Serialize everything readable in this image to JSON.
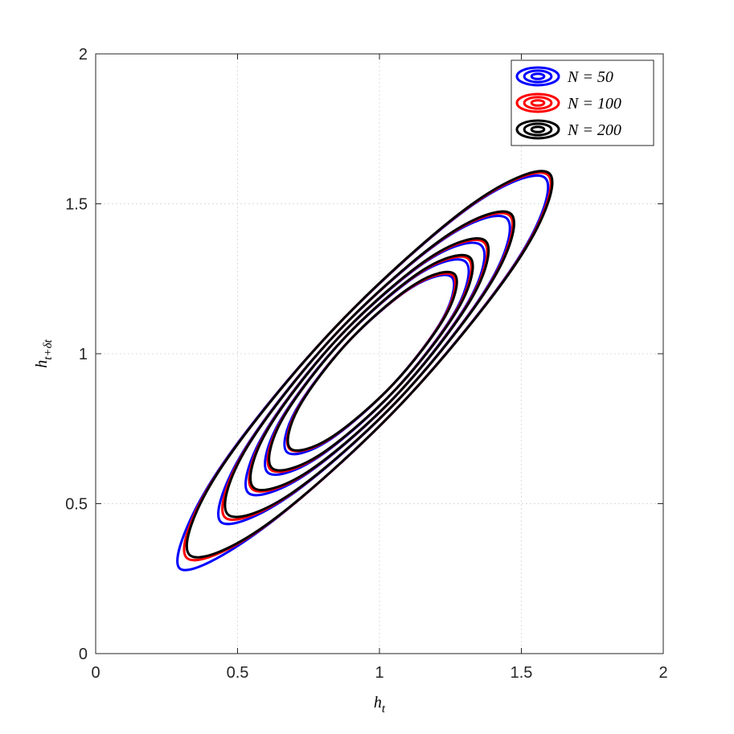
{
  "chart_data": {
    "type": "contour",
    "xlabel": {
      "text": "h",
      "subscript": "t"
    },
    "ylabel": {
      "text": "h",
      "subscript": "t+δt"
    },
    "xlim": [
      0,
      2
    ],
    "ylim": [
      0,
      2
    ],
    "xticks": [
      0,
      0.5,
      1,
      1.5,
      2
    ],
    "yticks": [
      0,
      0.5,
      1,
      1.5,
      2
    ],
    "grid": true,
    "legend": "upper right",
    "series": [
      {
        "name": "N = 50",
        "color": "#0000ff",
        "contours": [
          {
            "x": [
              1.255,
              1.115,
              0.888,
              0.705,
              0.673,
              0.811,
              1.038,
              1.222
            ],
            "y": [
              1.255,
              1.222,
              1.038,
              0.811,
              0.673,
              0.705,
              0.888,
              1.115
            ]
          },
          {
            "x": [
              1.305,
              1.143,
              0.87,
              0.648,
              0.605,
              0.773,
              1.046,
              1.268
            ],
            "y": [
              1.305,
              1.268,
              1.046,
              0.773,
              0.605,
              0.648,
              0.87,
              1.143
            ]
          },
          {
            "x": [
              1.36,
              1.173,
              0.854,
              0.593,
              0.537,
              0.733,
              1.052,
              1.313
            ],
            "y": [
              1.36,
              1.313,
              1.052,
              0.733,
              0.537,
              0.593,
              0.854,
              1.173
            ]
          },
          {
            "x": [
              1.45,
              1.229,
              0.843,
              0.522,
              0.44,
              0.677,
              1.063,
              1.384
            ],
            "y": [
              1.45,
              1.384,
              1.063,
              0.677,
              0.44,
              0.522,
              0.843,
              1.229
            ]
          },
          {
            "x": [
              1.585,
              1.316,
              0.831,
              0.418,
              0.295,
              0.59,
              1.075,
              1.488
            ],
            "y": [
              1.585,
              1.488,
              1.075,
              0.59,
              0.285,
              0.418,
              0.831,
              1.316
            ]
          }
        ]
      },
      {
        "name": "N = 100",
        "color": "#ff0000",
        "contours": [
          {
            "x": [
              1.26,
              1.122,
              0.896,
              0.713,
              0.683,
              0.819,
              1.046,
              1.228
            ],
            "y": [
              1.26,
              1.228,
              1.046,
              0.819,
              0.683,
              0.713,
              0.896,
              1.122
            ]
          },
          {
            "x": [
              1.315,
              1.15,
              0.878,
              0.656,
              0.615,
              0.781,
              1.054,
              1.275
            ],
            "y": [
              1.315,
              1.275,
              1.054,
              0.781,
              0.615,
              0.656,
              0.878,
              1.15
            ]
          },
          {
            "x": [
              1.37,
              1.18,
              0.862,
              0.601,
              0.55,
              0.741,
              1.06,
              1.32
            ],
            "y": [
              1.37,
              1.32,
              1.06,
              0.741,
              0.55,
              0.601,
              0.862,
              1.18
            ]
          },
          {
            "x": [
              1.46,
              1.236,
              0.851,
              0.53,
              0.455,
              0.685,
              1.071,
              1.391
            ],
            "y": [
              1.46,
              1.391,
              1.071,
              0.685,
              0.455,
              0.53,
              0.851,
              1.236
            ]
          },
          {
            "x": [
              1.595,
              1.323,
              0.839,
              0.426,
              0.32,
              0.598,
              1.083,
              1.495
            ],
            "y": [
              1.595,
              1.495,
              1.083,
              0.598,
              0.32,
              0.426,
              0.839,
              1.323
            ]
          }
        ]
      },
      {
        "name": "N = 200",
        "color": "#000000",
        "contours": [
          {
            "x": [
              1.265,
              1.127,
              0.9,
              0.717,
              0.685,
              0.823,
              1.05,
              1.233
            ],
            "y": [
              1.265,
              1.233,
              1.05,
              0.823,
              0.685,
              0.717,
              0.9,
              1.127
            ]
          },
          {
            "x": [
              1.32,
              1.155,
              0.882,
              0.66,
              0.62,
              0.785,
              1.058,
              1.28
            ],
            "y": [
              1.32,
              1.28,
              1.058,
              0.785,
              0.62,
              0.66,
              0.882,
              1.155
            ]
          },
          {
            "x": [
              1.375,
              1.185,
              0.866,
              0.605,
              0.555,
              0.745,
              1.064,
              1.325
            ],
            "y": [
              1.375,
              1.325,
              1.064,
              0.745,
              0.555,
              0.605,
              0.866,
              1.185
            ]
          },
          {
            "x": [
              1.465,
              1.241,
              0.855,
              0.534,
              0.465,
              0.689,
              1.075,
              1.396
            ],
            "y": [
              1.465,
              1.396,
              1.075,
              0.689,
              0.465,
              0.534,
              0.855,
              1.241
            ]
          },
          {
            "x": [
              1.6,
              1.328,
              0.843,
              0.43,
              0.33,
              0.602,
              1.087,
              1.5
            ],
            "y": [
              1.6,
              1.5,
              1.087,
              0.602,
              0.33,
              0.43,
              0.843,
              1.328
            ]
          }
        ]
      }
    ]
  }
}
